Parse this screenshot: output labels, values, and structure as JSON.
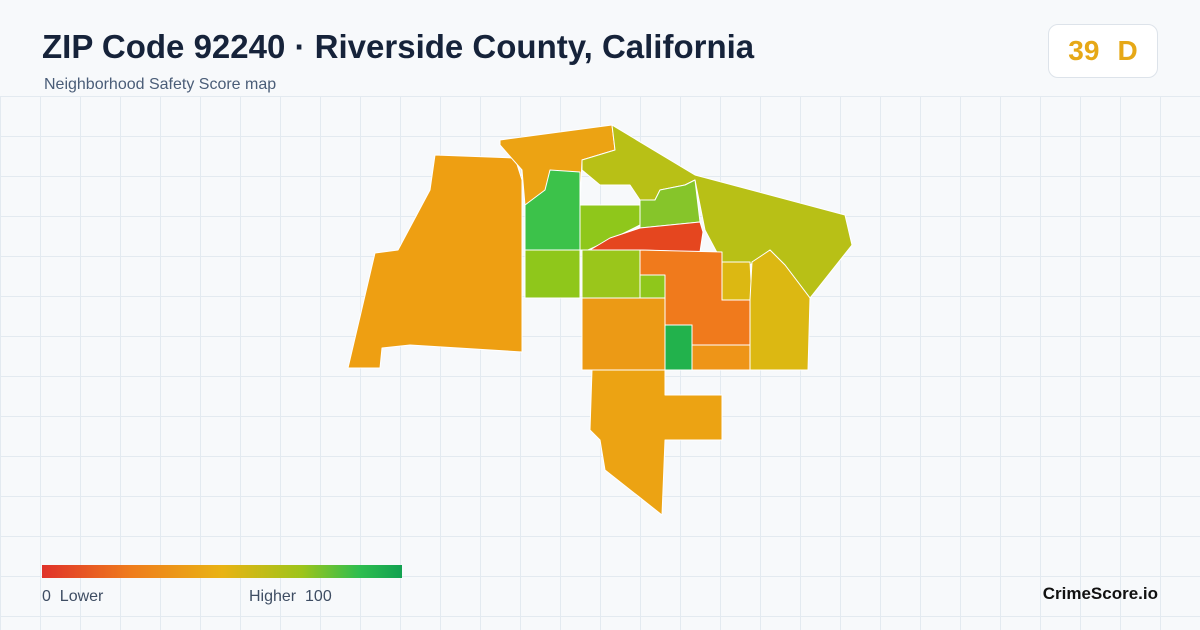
{
  "header": {
    "title": "ZIP Code 92240 · Riverside County, California",
    "subtitle": "Neighborhood Safety Score map"
  },
  "score": {
    "value": 39,
    "grade": "D"
  },
  "legend": {
    "min_value": 0,
    "min_label": "Lower",
    "max_label": "Higher",
    "max_value": 100
  },
  "brand": "CrimeScore.io"
}
